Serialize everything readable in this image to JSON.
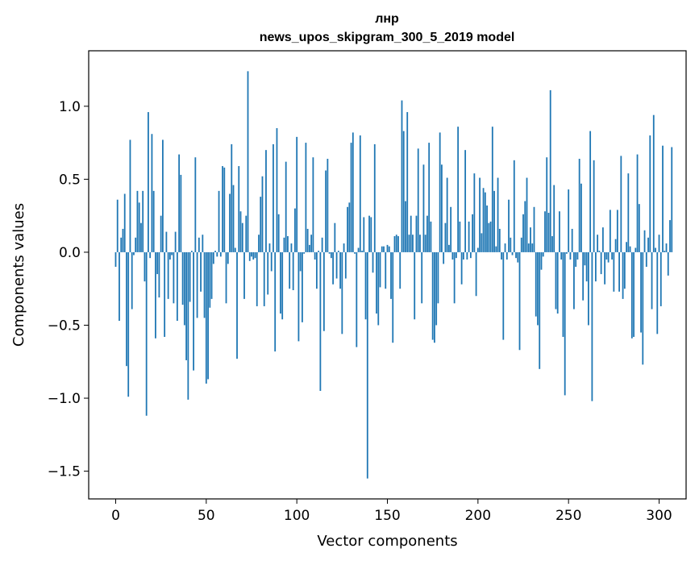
{
  "chart_data": {
    "type": "bar",
    "title_line1": "лнр",
    "title_line2": "news_upos_skipgram_300_5_2019 model",
    "xlabel": "Vector components",
    "ylabel": "Components values",
    "xlim": [
      -14.9,
      314.9
    ],
    "ylim": [
      -1.69,
      1.38
    ],
    "xticks": [
      0,
      50,
      100,
      150,
      200,
      250,
      300
    ],
    "xtick_labels": [
      "0",
      "50",
      "100",
      "150",
      "200",
      "250",
      "300"
    ],
    "yticks": [
      -1.5,
      -1.0,
      -0.5,
      0.0,
      0.5,
      1.0
    ],
    "ytick_labels": [
      "−1.5",
      "−1.0",
      "−0.5",
      "0.0",
      "0.5",
      "1.0"
    ],
    "bar_color": "#1f77b4",
    "grid": false,
    "values": [
      -0.1,
      0.36,
      -0.47,
      0.1,
      0.16,
      0.4,
      -0.78,
      -0.99,
      0.77,
      -0.39,
      -0.02,
      0.1,
      0.42,
      0.34,
      0.2,
      0.42,
      -0.2,
      -1.12,
      0.96,
      -0.04,
      0.81,
      0.42,
      -0.59,
      -0.15,
      -0.31,
      0.25,
      0.77,
      -0.58,
      0.14,
      -0.32,
      -0.05,
      -0.02,
      -0.35,
      0.14,
      -0.47,
      0.67,
      0.53,
      -0.36,
      -0.5,
      -0.74,
      -1.01,
      -0.34,
      0.01,
      -0.81,
      0.65,
      -0.45,
      0.1,
      -0.27,
      0.12,
      -0.45,
      -0.9,
      -0.87,
      -0.38,
      -0.32,
      -0.08,
      0.01,
      -0.03,
      0.42,
      -0.03,
      0.59,
      0.58,
      -0.35,
      -0.08,
      0.4,
      0.74,
      0.46,
      0.03,
      -0.73,
      0.59,
      0.28,
      0.2,
      -0.32,
      0.25,
      1.24,
      -0.06,
      -0.03,
      -0.05,
      -0.04,
      -0.37,
      0.12,
      0.38,
      0.52,
      -0.37,
      0.7,
      -0.29,
      0.06,
      -0.13,
      0.74,
      -0.68,
      0.85,
      0.26,
      -0.42,
      -0.46,
      0.1,
      0.62,
      0.11,
      -0.25,
      0.06,
      -0.26,
      0.3,
      0.79,
      -0.61,
      -0.13,
      -0.48,
      -0.01,
      0.75,
      0.16,
      0.05,
      0.12,
      0.65,
      -0.05,
      -0.25,
      0.01,
      -0.95,
      0.1,
      -0.54,
      0.56,
      0.64,
      -0.01,
      -0.04,
      -0.22,
      0.2,
      -0.18,
      0.01,
      -0.25,
      -0.56,
      0.06,
      -0.18,
      0.31,
      0.34,
      0.75,
      0.82,
      -0.01,
      -0.65,
      0.03,
      0.8,
      0.01,
      0.24,
      -0.46,
      -1.55,
      0.25,
      0.24,
      -0.14,
      0.74,
      -0.42,
      -0.5,
      -0.24,
      0.04,
      0.04,
      -0.25,
      0.05,
      0.04,
      -0.32,
      -0.62,
      0.11,
      0.12,
      0.11,
      -0.25,
      1.04,
      0.83,
      0.35,
      0.96,
      0.12,
      0.25,
      0.12,
      -0.46,
      0.25,
      0.71,
      0.12,
      -0.35,
      0.6,
      0.12,
      0.25,
      0.75,
      0.21,
      -0.6,
      -0.62,
      -0.5,
      -0.35,
      0.82,
      0.6,
      -0.08,
      0.2,
      0.51,
      0.05,
      0.31,
      -0.05,
      -0.35,
      -0.04,
      0.86,
      0.21,
      -0.22,
      -0.05,
      0.7,
      -0.05,
      0.21,
      -0.04,
      0.26,
      0.54,
      -0.3,
      0.03,
      0.51,
      0.13,
      0.44,
      0.41,
      0.32,
      0.2,
      0.21,
      0.86,
      0.42,
      0.04,
      0.51,
      0.16,
      -0.05,
      -0.6,
      0.06,
      -0.05,
      0.36,
      0.1,
      -0.02,
      0.63,
      -0.04,
      -0.07,
      -0.67,
      0.1,
      0.26,
      0.35,
      0.51,
      0.06,
      0.17,
      0.06,
      0.31,
      -0.44,
      -0.5,
      -0.8,
      -0.12,
      -0.03,
      0.28,
      0.65,
      0.27,
      1.11,
      0.11,
      0.46,
      -0.39,
      -0.42,
      0.28,
      -0.05,
      -0.58,
      -0.98,
      -0.01,
      0.43,
      -0.05,
      0.16,
      -0.39,
      -0.1,
      -0.05,
      0.64,
      0.47,
      -0.33,
      -0.09,
      -0.2,
      -0.5,
      0.83,
      -1.02,
      0.63,
      -0.2,
      0.12,
      0.01,
      -0.15,
      0.17,
      -0.22,
      -0.05,
      -0.07,
      0.29,
      -0.05,
      -0.27,
      0.09,
      0.29,
      -0.27,
      0.66,
      -0.32,
      -0.25,
      0.07,
      0.54,
      0.04,
      -0.59,
      -0.58,
      0.03,
      0.67,
      0.33,
      -0.55,
      -0.77,
      0.15,
      -0.1,
      0.1,
      0.8,
      -0.39,
      0.94,
      0.03,
      -0.56,
      0.12,
      -0.37,
      0.73,
      0.01,
      0.06,
      -0.16,
      0.22,
      0.72
    ]
  }
}
